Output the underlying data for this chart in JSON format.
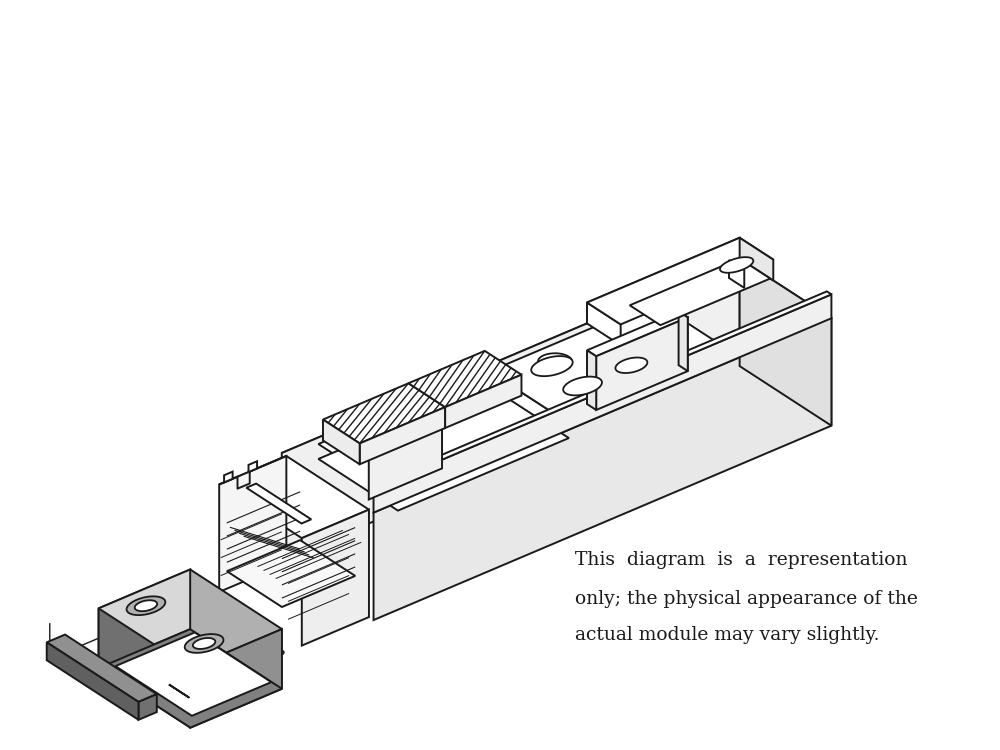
{
  "background_color": "#ffffff",
  "line_color": "#1a1a1a",
  "gray_fill": "#909090",
  "mid_gray": "#b0b0b0",
  "light_gray": "#d8d8d8",
  "annotation_line1": "This  diagram  is  a  representation",
  "annotation_line2": "only; the physical appearance of the",
  "annotation_line3": "actual module may vary slightly.",
  "fig_width": 10.0,
  "fig_height": 7.5,
  "dpi": 100
}
